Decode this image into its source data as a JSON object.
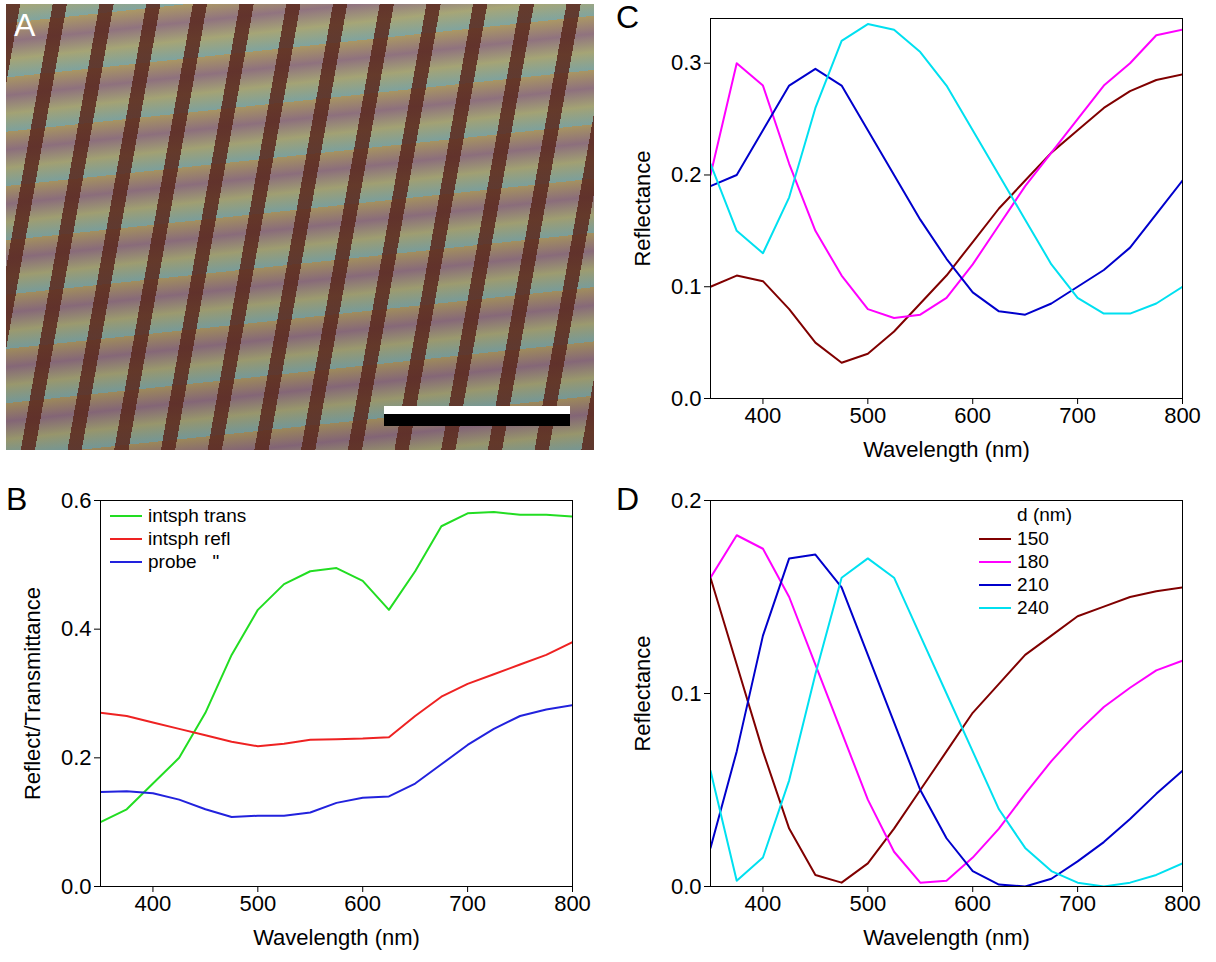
{
  "chart_data": [
    {
      "type": "image",
      "title": "A"
    },
    {
      "type": "line",
      "title": "B",
      "x_label": "Wavelength (nm)",
      "y_label": "Reflect/Transmittance",
      "x": [
        350,
        375,
        400,
        425,
        450,
        475,
        500,
        525,
        550,
        575,
        600,
        625,
        650,
        675,
        700,
        725,
        750,
        775,
        800
      ],
      "xlim": [
        350,
        800
      ],
      "xticks": [
        400,
        500,
        600,
        700,
        800
      ],
      "ylim": [
        0,
        0.6
      ],
      "yticks": [
        {
          "value": 0,
          "label": "0.0"
        },
        {
          "value": 0.2,
          "label": "0.2"
        },
        {
          "value": 0.4,
          "label": "0.4"
        },
        {
          "value": 0.6,
          "label": "0.6"
        }
      ],
      "legend": "top-left",
      "series": [
        {
          "name": "intsph trans",
          "color": "#22dd22",
          "values": [
            0.1,
            0.12,
            0.16,
            0.2,
            0.27,
            0.36,
            0.43,
            0.47,
            0.49,
            0.495,
            0.475,
            0.43,
            0.49,
            0.56,
            0.58,
            0.582,
            0.578,
            0.578,
            0.575
          ]
        },
        {
          "name": "intsph refl",
          "color": "#ee2222",
          "values": [
            0.27,
            0.265,
            0.255,
            0.245,
            0.235,
            0.225,
            0.218,
            0.222,
            0.228,
            0.229,
            0.23,
            0.232,
            0.265,
            0.295,
            0.315,
            0.33,
            0.345,
            0.36,
            0.38
          ]
        },
        {
          "name": "probe   \"",
          "color": "#2222dd",
          "values": [
            0.147,
            0.148,
            0.145,
            0.135,
            0.12,
            0.108,
            0.11,
            0.11,
            0.115,
            0.13,
            0.138,
            0.14,
            0.16,
            0.19,
            0.22,
            0.245,
            0.265,
            0.275,
            0.282
          ]
        }
      ]
    },
    {
      "type": "line",
      "title": "C",
      "x_label": "Wavelength (nm)",
      "y_label": "Reflectance",
      "x": [
        350,
        375,
        400,
        425,
        450,
        475,
        500,
        525,
        550,
        575,
        600,
        625,
        650,
        675,
        700,
        725,
        750,
        775,
        800
      ],
      "xlim": [
        350,
        800
      ],
      "xticks": [
        400,
        500,
        600,
        700,
        800
      ],
      "ylim": [
        0,
        0.34
      ],
      "yticks": [
        {
          "value": 0,
          "label": "0.0"
        },
        {
          "value": 0.1,
          "label": "0.1"
        },
        {
          "value": 0.2,
          "label": "0.2"
        },
        {
          "value": 0.3,
          "label": "0.3"
        }
      ],
      "series": [
        {
          "color": "#800000",
          "values": [
            0.1,
            0.11,
            0.105,
            0.08,
            0.05,
            0.032,
            0.04,
            0.06,
            0.085,
            0.11,
            0.14,
            0.17,
            0.195,
            0.22,
            0.24,
            0.26,
            0.275,
            0.285,
            0.29
          ]
        },
        {
          "color": "#ff00ff",
          "values": [
            0.2,
            0.3,
            0.28,
            0.21,
            0.15,
            0.11,
            0.08,
            0.072,
            0.075,
            0.09,
            0.12,
            0.155,
            0.19,
            0.22,
            0.25,
            0.28,
            0.3,
            0.325,
            0.33
          ]
        },
        {
          "color": "#0000cc",
          "values": [
            0.19,
            0.2,
            0.24,
            0.28,
            0.295,
            0.28,
            0.24,
            0.2,
            0.16,
            0.125,
            0.095,
            0.078,
            0.075,
            0.085,
            0.1,
            0.115,
            0.135,
            0.165,
            0.195
          ]
        },
        {
          "color": "#00e0f0",
          "values": [
            0.21,
            0.15,
            0.13,
            0.18,
            0.26,
            0.32,
            0.335,
            0.33,
            0.31,
            0.28,
            0.24,
            0.2,
            0.16,
            0.12,
            0.09,
            0.076,
            0.076,
            0.085,
            0.1
          ]
        }
      ]
    },
    {
      "type": "line",
      "title": "D",
      "x_label": "Wavelength (nm)",
      "y_label": "Reflectance",
      "x": [
        350,
        375,
        400,
        425,
        450,
        475,
        500,
        525,
        550,
        575,
        600,
        625,
        650,
        675,
        700,
        725,
        750,
        775,
        800
      ],
      "xlim": [
        350,
        800
      ],
      "xticks": [
        400,
        500,
        600,
        700,
        800
      ],
      "ylim": [
        0,
        0.2
      ],
      "yticks": [
        {
          "value": 0,
          "label": "0.0"
        },
        {
          "value": 0.1,
          "label": "0.1"
        },
        {
          "value": 0.2,
          "label": "0.2"
        }
      ],
      "legend": "top-right",
      "legend_title": "d (nm)",
      "series": [
        {
          "name": "150",
          "color": "#800000",
          "values": [
            0.16,
            0.115,
            0.07,
            0.03,
            0.006,
            0.002,
            0.012,
            0.03,
            0.05,
            0.07,
            0.09,
            0.105,
            0.12,
            0.13,
            0.14,
            0.145,
            0.15,
            0.153,
            0.155
          ]
        },
        {
          "name": "180",
          "color": "#ff00ff",
          "values": [
            0.16,
            0.182,
            0.175,
            0.15,
            0.115,
            0.08,
            0.045,
            0.018,
            0.002,
            0.003,
            0.015,
            0.03,
            0.048,
            0.065,
            0.08,
            0.093,
            0.103,
            0.112,
            0.117
          ]
        },
        {
          "name": "210",
          "color": "#0000cc",
          "values": [
            0.02,
            0.07,
            0.13,
            0.17,
            0.172,
            0.155,
            0.12,
            0.085,
            0.05,
            0.025,
            0.008,
            0.001,
            0.0,
            0.004,
            0.013,
            0.023,
            0.035,
            0.048,
            0.06
          ]
        },
        {
          "name": "240",
          "color": "#00e0f0",
          "values": [
            0.06,
            0.003,
            0.015,
            0.055,
            0.11,
            0.16,
            0.17,
            0.16,
            0.13,
            0.1,
            0.07,
            0.04,
            0.02,
            0.008,
            0.002,
            0.0,
            0.002,
            0.006,
            0.012
          ]
        }
      ]
    }
  ]
}
